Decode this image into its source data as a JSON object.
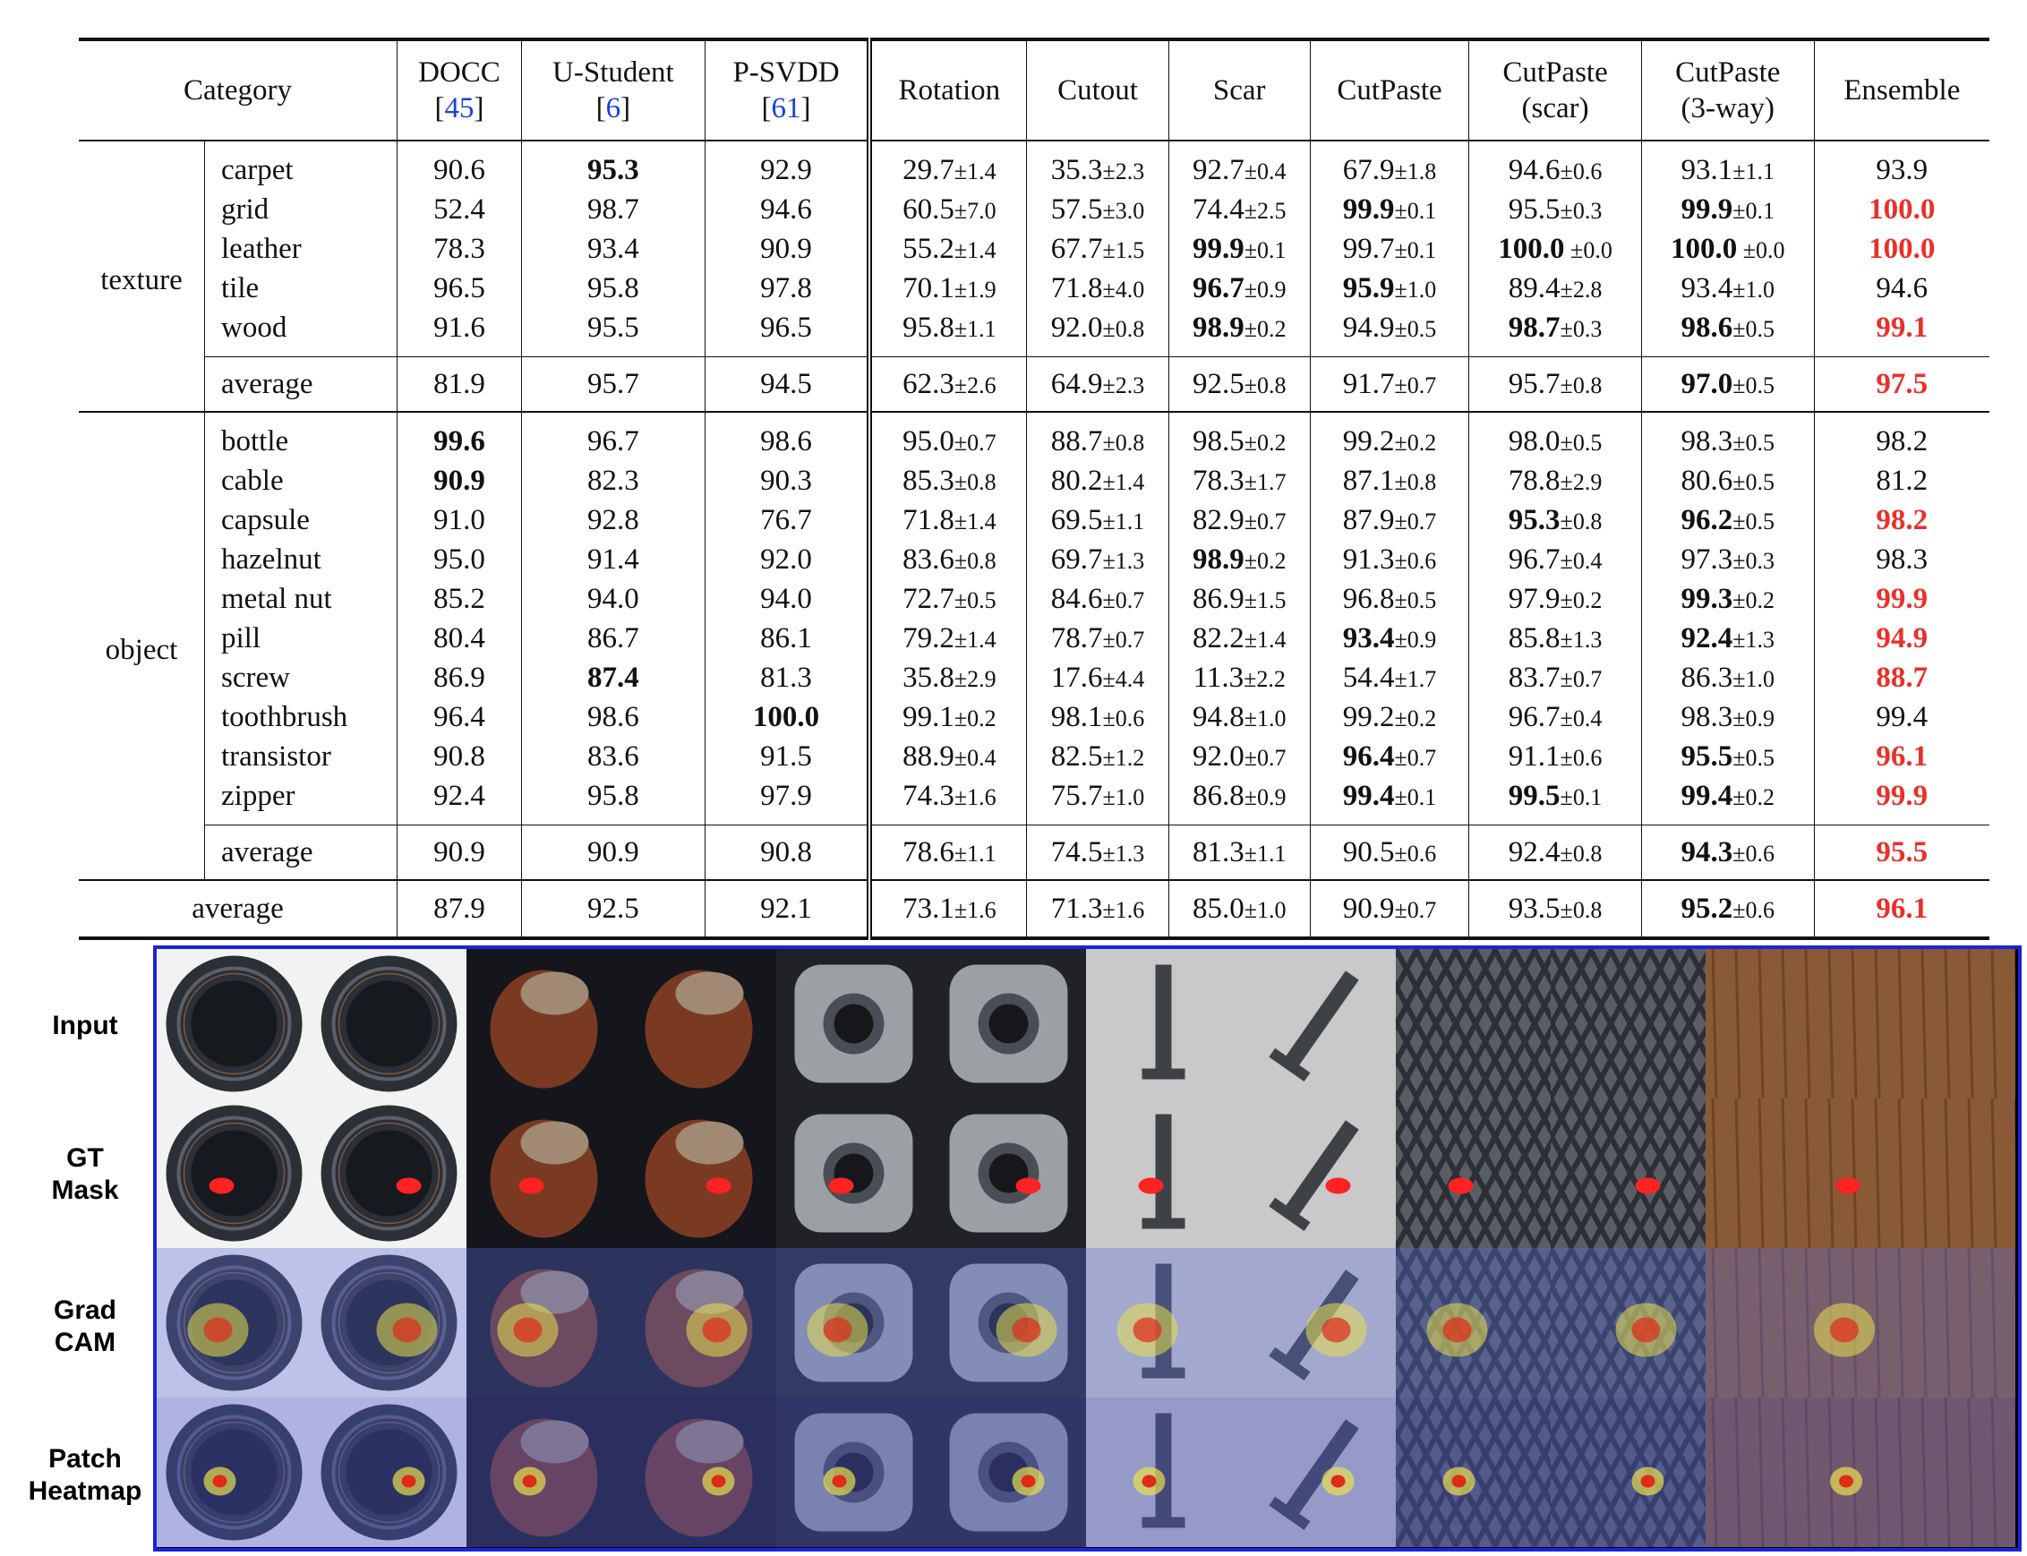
{
  "table": {
    "headers": [
      {
        "line1": "Category",
        "line2": "",
        "cite": ""
      },
      {
        "line1": "DOCC",
        "line2": "[",
        "cite": "45",
        "close": "]"
      },
      {
        "line1": "U-Student",
        "line2": "[",
        "cite": "6",
        "close": "]"
      },
      {
        "line1": "P-SVDD",
        "line2": "[",
        "cite": "61",
        "close": "]"
      },
      {
        "line1": "Rotation",
        "line2": "",
        "cite": ""
      },
      {
        "line1": "Cutout",
        "line2": "",
        "cite": ""
      },
      {
        "line1": "Scar",
        "line2": "",
        "cite": ""
      },
      {
        "line1": "CutPaste",
        "line2": "",
        "cite": ""
      },
      {
        "line1": "CutPaste",
        "line2": "(scar)",
        "cite": ""
      },
      {
        "line1": "CutPaste",
        "line2": "(3-way)",
        "cite": ""
      },
      {
        "line1": "Ensemble",
        "line2": "",
        "cite": ""
      }
    ],
    "sections": [
      {
        "name": "texture",
        "rows": [
          {
            "label": "carpet",
            "docc": "90.6",
            "ustu": "95.3",
            "psvdd": "92.9",
            "rot": "29.7",
            "rot_s": "±1.4",
            "cut": "35.3",
            "cut_s": "±2.3",
            "scar": "92.7",
            "scar_s": "±0.4",
            "cp": "67.9",
            "cp_s": "±1.8",
            "cps": "94.6",
            "cps_s": "±0.6",
            "cp3": "93.1",
            "cp3_s": "±1.1",
            "ens": "93.9"
          },
          {
            "label": "grid",
            "docc": "52.4",
            "ustu": "98.7",
            "psvdd": "94.6",
            "rot": "60.5",
            "rot_s": "±7.0",
            "cut": "57.5",
            "cut_s": "±3.0",
            "scar": "74.4",
            "scar_s": "±2.5",
            "cp": "99.9",
            "cp_s": "±0.1",
            "cps": "95.5",
            "cps_s": "±0.3",
            "cp3": "99.9",
            "cp3_s": "±0.1",
            "ens": "100.0"
          },
          {
            "label": "leather",
            "docc": "78.3",
            "ustu": "93.4",
            "psvdd": "90.9",
            "rot": "55.2",
            "rot_s": "±1.4",
            "cut": "67.7",
            "cut_s": "±1.5",
            "scar": "99.9",
            "scar_s": "±0.1",
            "cp": "99.7",
            "cp_s": "±0.1",
            "cps": "100.0",
            "cps_s": " ±0.0",
            "cp3": "100.0",
            "cp3_s": " ±0.0",
            "ens": "100.0"
          },
          {
            "label": "tile",
            "docc": "96.5",
            "ustu": "95.8",
            "psvdd": "97.8",
            "rot": "70.1",
            "rot_s": "±1.9",
            "cut": "71.8",
            "cut_s": "±4.0",
            "scar": "96.7",
            "scar_s": "±0.9",
            "cp": "95.9",
            "cp_s": "±1.0",
            "cps": "89.4",
            "cps_s": "±2.8",
            "cp3": "93.4",
            "cp3_s": "±1.0",
            "ens": "94.6"
          },
          {
            "label": "wood",
            "docc": "91.6",
            "ustu": "95.5",
            "psvdd": "96.5",
            "rot": "95.8",
            "rot_s": "±1.1",
            "cut": "92.0",
            "cut_s": "±0.8",
            "scar": "98.9",
            "scar_s": "±0.2",
            "cp": "94.9",
            "cp_s": "±0.5",
            "cps": "98.7",
            "cps_s": "±0.3",
            "cp3": "98.6",
            "cp3_s": "±0.5",
            "ens": "99.1"
          }
        ],
        "average": {
          "label": "average",
          "docc": "81.9",
          "ustu": "95.7",
          "psvdd": "94.5",
          "rot": "62.3",
          "rot_s": "±2.6",
          "cut": "64.9",
          "cut_s": "±2.3",
          "scar": "92.5",
          "scar_s": "±0.8",
          "cp": "91.7",
          "cp_s": "±0.7",
          "cps": "95.7",
          "cps_s": "±0.8",
          "cp3": "97.0",
          "cp3_s": "±0.5",
          "ens": "97.5"
        }
      },
      {
        "name": "object",
        "rows": [
          {
            "label": "bottle",
            "docc": "99.6",
            "ustu": "96.7",
            "psvdd": "98.6",
            "rot": "95.0",
            "rot_s": "±0.7",
            "cut": "88.7",
            "cut_s": "±0.8",
            "scar": "98.5",
            "scar_s": "±0.2",
            "cp": "99.2",
            "cp_s": "±0.2",
            "cps": "98.0",
            "cps_s": "±0.5",
            "cp3": "98.3",
            "cp3_s": "±0.5",
            "ens": "98.2"
          },
          {
            "label": "cable",
            "docc": "90.9",
            "ustu": "82.3",
            "psvdd": "90.3",
            "rot": "85.3",
            "rot_s": "±0.8",
            "cut": "80.2",
            "cut_s": "±1.4",
            "scar": "78.3",
            "scar_s": "±1.7",
            "cp": "87.1",
            "cp_s": "±0.8",
            "cps": "78.8",
            "cps_s": "±2.9",
            "cp3": "80.6",
            "cp3_s": "±0.5",
            "ens": "81.2"
          },
          {
            "label": "capsule",
            "docc": "91.0",
            "ustu": "92.8",
            "psvdd": "76.7",
            "rot": "71.8",
            "rot_s": "±1.4",
            "cut": "69.5",
            "cut_s": "±1.1",
            "scar": "82.9",
            "scar_s": "±0.7",
            "cp": "87.9",
            "cp_s": "±0.7",
            "cps": "95.3",
            "cps_s": "±0.8",
            "cp3": "96.2",
            "cp3_s": "±0.5",
            "ens": "98.2"
          },
          {
            "label": "hazelnut",
            "docc": "95.0",
            "ustu": "91.4",
            "psvdd": "92.0",
            "rot": "83.6",
            "rot_s": "±0.8",
            "cut": "69.7",
            "cut_s": "±1.3",
            "scar": "98.9",
            "scar_s": "±0.2",
            "cp": "91.3",
            "cp_s": "±0.6",
            "cps": "96.7",
            "cps_s": "±0.4",
            "cp3": "97.3",
            "cp3_s": "±0.3",
            "ens": "98.3"
          },
          {
            "label": "metal nut",
            "docc": "85.2",
            "ustu": "94.0",
            "psvdd": "94.0",
            "rot": "72.7",
            "rot_s": "±0.5",
            "cut": "84.6",
            "cut_s": "±0.7",
            "scar": "86.9",
            "scar_s": "±1.5",
            "cp": "96.8",
            "cp_s": "±0.5",
            "cps": "97.9",
            "cps_s": "±0.2",
            "cp3": "99.3",
            "cp3_s": "±0.2",
            "ens": "99.9"
          },
          {
            "label": "pill",
            "docc": "80.4",
            "ustu": "86.7",
            "psvdd": "86.1",
            "rot": "79.2",
            "rot_s": "±1.4",
            "cut": "78.7",
            "cut_s": "±0.7",
            "scar": "82.2",
            "scar_s": "±1.4",
            "cp": "93.4",
            "cp_s": "±0.9",
            "cps": "85.8",
            "cps_s": "±1.3",
            "cp3": "92.4",
            "cp3_s": "±1.3",
            "ens": "94.9"
          },
          {
            "label": "screw",
            "docc": "86.9",
            "ustu": "87.4",
            "psvdd": "81.3",
            "rot": "35.8",
            "rot_s": "±2.9",
            "cut": "17.6",
            "cut_s": "±4.4",
            "scar": "11.3",
            "scar_s": "±2.2",
            "cp": "54.4",
            "cp_s": "±1.7",
            "cps": "83.7",
            "cps_s": "±0.7",
            "cp3": "86.3",
            "cp3_s": "±1.0",
            "ens": "88.7"
          },
          {
            "label": "toothbrush",
            "docc": "96.4",
            "ustu": "98.6",
            "psvdd": "100.0",
            "rot": "99.1",
            "rot_s": "±0.2",
            "cut": "98.1",
            "cut_s": "±0.6",
            "scar": "94.8",
            "scar_s": "±1.0",
            "cp": "99.2",
            "cp_s": "±0.2",
            "cps": "96.7",
            "cps_s": "±0.4",
            "cp3": "98.3",
            "cp3_s": "±0.9",
            "ens": "99.4"
          },
          {
            "label": "transistor",
            "docc": "90.8",
            "ustu": "83.6",
            "psvdd": "91.5",
            "rot": "88.9",
            "rot_s": "±0.4",
            "cut": "82.5",
            "cut_s": "±1.2",
            "scar": "92.0",
            "scar_s": "±0.7",
            "cp": "96.4",
            "cp_s": "±0.7",
            "cps": "91.1",
            "cps_s": "±0.6",
            "cp3": "95.5",
            "cp3_s": "±0.5",
            "ens": "96.1"
          },
          {
            "label": "zipper",
            "docc": "92.4",
            "ustu": "95.8",
            "psvdd": "97.9",
            "rot": "74.3",
            "rot_s": "±1.6",
            "cut": "75.7",
            "cut_s": "±1.0",
            "scar": "86.8",
            "scar_s": "±0.9",
            "cp": "99.4",
            "cp_s": "±0.1",
            "cps": "99.5",
            "cps_s": "±0.1",
            "cp3": "99.4",
            "cp3_s": "±0.2",
            "ens": "99.9"
          }
        ],
        "average": {
          "label": "average",
          "docc": "90.9",
          "ustu": "90.9",
          "psvdd": "90.8",
          "rot": "78.6",
          "rot_s": "±1.1",
          "cut": "74.5",
          "cut_s": "±1.3",
          "scar": "81.3",
          "scar_s": "±1.1",
          "cp": "90.5",
          "cp_s": "±0.6",
          "cps": "92.4",
          "cps_s": "±0.8",
          "cp3": "94.3",
          "cp3_s": "±0.6",
          "ens": "95.5"
        }
      }
    ],
    "grand_average": {
      "label": "average",
      "docc": "87.9",
      "ustu": "92.5",
      "psvdd": "92.1",
      "rot": "73.1",
      "rot_s": "±1.6",
      "cut": "71.3",
      "cut_s": "±1.6",
      "scar": "85.0",
      "scar_s": "±1.0",
      "cp": "90.9",
      "cp_s": "±0.7",
      "cps": "93.5",
      "cps_s": "±0.8",
      "cp3": "95.2",
      "cp3_s": "±0.6",
      "ens": "96.1"
    },
    "bold_cells": [
      "t0r0.ustu",
      "t0r1.cp",
      "t0r1.cp3",
      "t0r2.scar",
      "t0r2.cps",
      "t0r2.cp3",
      "t0r3.scar",
      "t0r3.cp",
      "t0r4.scar",
      "t0r4.cps",
      "t0r4.cp3",
      "t0a.cp3",
      "t1r0.docc",
      "t1r1.docc",
      "t1r2.cps",
      "t1r2.cp3",
      "t1r3.scar",
      "t1r4.cp3",
      "t1r5.cp",
      "t1r5.cp3",
      "t1r6.ustu",
      "t1r7.psvdd",
      "t1r8.cp",
      "t1r8.cp3",
      "t1r9.cp",
      "t1r9.cps",
      "t1r9.cp3",
      "t1a.cp3",
      "g.cp3"
    ],
    "red_cells": [
      "t0r1.ens",
      "t0r2.ens",
      "t0r4.ens",
      "t0a.ens",
      "t1r2.ens",
      "t1r4.ens",
      "t1r5.ens",
      "t1r6.ens",
      "t1r8.ens",
      "t1r9.ens",
      "t1a.ens",
      "g.ens"
    ],
    "colors": {
      "cite": "#1a3ee6",
      "ensemble_best": "#e8312a",
      "grid_border": "#1b24d8",
      "mask": "#ff2222"
    }
  },
  "figure": {
    "row_labels": [
      {
        "line1": "Input",
        "line2": ""
      },
      {
        "line1": "GT",
        "line2": "Mask"
      },
      {
        "line1": "Grad",
        "line2": "CAM"
      },
      {
        "line1": "Patch",
        "line2": "Heatmap"
      }
    ],
    "columns": [
      "bottle",
      "bottle",
      "hazelnut",
      "hazelnut",
      "metal nut",
      "metal nut",
      "screw",
      "screw",
      "grid",
      "grid",
      "wood"
    ]
  }
}
